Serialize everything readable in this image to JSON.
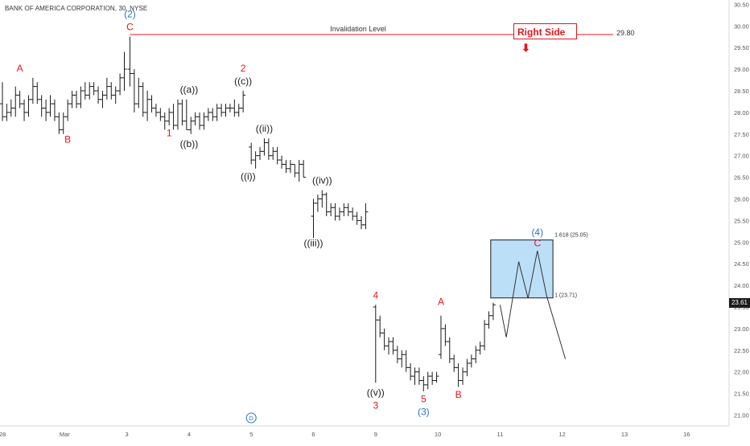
{
  "header": {
    "symbol_title": "BANK OF AMERICA CORPORATION, 30, NYSE"
  },
  "colors": {
    "bars": "#1b1b1b",
    "red": "#e8141c",
    "blue": "#2c72c7",
    "box_fill": "#bcdff8",
    "axis_text": "#555555"
  },
  "annotations": {
    "right_side": "Right Side",
    "right_side_arrow": "⬇",
    "invalidation_label": "Invalidation Level",
    "invalidation_value": "29.80",
    "fib_upper": "1.618 (25.05)",
    "fib_lower": "1 (23.71)",
    "current_price": "23.61"
  },
  "chart_data": {
    "type": "ohlc",
    "title": "",
    "x_ticks": [
      {
        "label": "28",
        "x": 0
      },
      {
        "label": "Mar",
        "x": 1
      },
      {
        "label": "3",
        "x": 2
      },
      {
        "label": "4",
        "x": 3
      },
      {
        "label": "5",
        "x": 4
      },
      {
        "label": "6",
        "x": 5
      },
      {
        "label": "9",
        "x": 6
      },
      {
        "label": "10",
        "x": 7
      },
      {
        "label": "11",
        "x": 8
      },
      {
        "label": "12",
        "x": 9
      },
      {
        "label": "13",
        "x": 10
      },
      {
        "label": "16",
        "x": 11
      }
    ],
    "y_ticks": [
      "21.00",
      "21.50",
      "22.00",
      "22.50",
      "23.00",
      "23.50",
      "24.00",
      "24.50",
      "25.00",
      "25.50",
      "26.00",
      "26.50",
      "27.00",
      "27.50",
      "28.00",
      "28.50",
      "29.00",
      "29.50",
      "30.00",
      "30.50"
    ],
    "ylim": [
      20.75,
      30.6
    ],
    "invalidation_level": 29.8,
    "target_zone": {
      "x_start": 7.85,
      "x_end": 8.85,
      "low": 23.71,
      "high": 25.05
    },
    "projection_path": [
      [
        8.0,
        23.55
      ],
      [
        8.1,
        22.8
      ],
      [
        8.3,
        24.55
      ],
      [
        8.45,
        23.7
      ],
      [
        8.6,
        24.8
      ],
      [
        8.75,
        23.75
      ],
      [
        9.05,
        22.3
      ]
    ],
    "ohlc": [
      [
        0.0,
        28.2,
        28.7,
        27.8,
        27.9
      ],
      [
        0.07,
        27.9,
        28.2,
        27.8,
        28.0
      ],
      [
        0.14,
        28.0,
        28.3,
        27.9,
        28.1
      ],
      [
        0.21,
        28.1,
        28.6,
        27.9,
        28.4
      ],
      [
        0.28,
        28.4,
        28.5,
        28.1,
        28.2
      ],
      [
        0.35,
        28.2,
        28.3,
        27.8,
        28.0
      ],
      [
        0.42,
        28.0,
        28.4,
        27.9,
        28.3
      ],
      [
        0.49,
        28.3,
        28.8,
        28.2,
        28.6
      ],
      [
        0.56,
        28.6,
        28.7,
        28.2,
        28.3
      ],
      [
        0.63,
        28.3,
        28.4,
        27.9,
        28.1
      ],
      [
        0.7,
        28.1,
        28.3,
        27.8,
        28.0
      ],
      [
        0.77,
        28.0,
        28.4,
        27.9,
        28.2
      ],
      [
        0.84,
        28.2,
        28.3,
        27.8,
        27.9
      ],
      [
        0.91,
        27.9,
        28.0,
        27.5,
        27.6
      ],
      [
        0.98,
        27.6,
        28.0,
        27.5,
        27.9
      ],
      [
        1.05,
        27.9,
        28.3,
        27.8,
        28.2
      ],
      [
        1.12,
        28.2,
        28.5,
        28.1,
        28.4
      ],
      [
        1.19,
        28.4,
        28.5,
        28.1,
        28.2
      ],
      [
        1.26,
        28.2,
        28.6,
        28.1,
        28.5
      ],
      [
        1.33,
        28.5,
        28.7,
        28.3,
        28.4
      ],
      [
        1.4,
        28.4,
        28.7,
        28.3,
        28.6
      ],
      [
        1.47,
        28.6,
        28.7,
        28.4,
        28.5
      ],
      [
        1.54,
        28.5,
        28.6,
        28.2,
        28.3
      ],
      [
        1.61,
        28.3,
        28.5,
        28.1,
        28.4
      ],
      [
        1.68,
        28.4,
        28.8,
        28.3,
        28.6
      ],
      [
        1.75,
        28.6,
        28.7,
        28.3,
        28.4
      ],
      [
        1.82,
        28.4,
        28.6,
        28.2,
        28.5
      ],
      [
        1.89,
        28.5,
        28.9,
        28.4,
        28.8
      ],
      [
        1.96,
        28.8,
        29.4,
        28.5,
        29.0
      ],
      [
        2.05,
        29.0,
        29.75,
        28.6,
        28.9
      ],
      [
        2.12,
        28.9,
        29.0,
        28.0,
        28.2
      ],
      [
        2.19,
        28.2,
        28.8,
        28.1,
        28.6
      ],
      [
        2.26,
        28.6,
        28.7,
        27.9,
        28.0
      ],
      [
        2.33,
        28.0,
        28.5,
        27.8,
        28.3
      ],
      [
        2.4,
        28.3,
        28.4,
        28.0,
        28.1
      ],
      [
        2.47,
        28.1,
        28.2,
        27.9,
        28.0
      ],
      [
        2.54,
        28.0,
        28.1,
        27.8,
        27.9
      ],
      [
        2.61,
        27.9,
        28.0,
        27.6,
        27.8
      ],
      [
        2.68,
        27.8,
        28.1,
        27.7,
        28.0
      ],
      [
        2.75,
        28.0,
        28.2,
        27.6,
        27.7
      ],
      [
        2.82,
        27.7,
        28.3,
        27.6,
        28.2
      ],
      [
        2.89,
        28.2,
        28.3,
        27.7,
        27.8
      ],
      [
        2.96,
        27.8,
        28.3,
        27.6,
        27.6
      ],
      [
        3.03,
        27.6,
        27.9,
        27.5,
        27.8
      ],
      [
        3.1,
        27.8,
        28.0,
        27.7,
        27.9
      ],
      [
        3.17,
        27.9,
        28.0,
        27.6,
        27.7
      ],
      [
        3.24,
        27.7,
        28.0,
        27.6,
        27.9
      ],
      [
        3.31,
        27.9,
        28.1,
        27.8,
        28.0
      ],
      [
        3.38,
        28.0,
        28.1,
        27.8,
        27.9
      ],
      [
        3.45,
        27.9,
        28.2,
        27.8,
        28.1
      ],
      [
        3.52,
        28.1,
        28.2,
        27.9,
        28.0
      ],
      [
        3.59,
        28.0,
        28.2,
        27.9,
        28.1
      ],
      [
        3.66,
        28.1,
        28.2,
        28.0,
        28.1
      ],
      [
        3.73,
        28.1,
        28.3,
        27.9,
        28.0
      ],
      [
        3.8,
        28.0,
        28.2,
        27.9,
        28.1
      ],
      [
        3.87,
        28.1,
        28.5,
        28.0,
        28.4
      ],
      [
        4.0,
        27.2,
        27.3,
        26.8,
        26.9
      ],
      [
        4.07,
        26.9,
        27.1,
        26.7,
        27.0
      ],
      [
        4.14,
        27.0,
        27.2,
        26.9,
        27.1
      ],
      [
        4.21,
        27.1,
        27.4,
        27.0,
        27.3
      ],
      [
        4.28,
        27.3,
        27.4,
        26.9,
        27.0
      ],
      [
        4.35,
        27.0,
        27.2,
        26.9,
        27.1
      ],
      [
        4.42,
        27.1,
        27.2,
        26.8,
        26.9
      ],
      [
        4.49,
        26.9,
        27.0,
        26.7,
        26.8
      ],
      [
        4.56,
        26.8,
        26.9,
        26.6,
        26.7
      ],
      [
        4.63,
        26.7,
        26.9,
        26.6,
        26.8
      ],
      [
        4.7,
        26.8,
        26.8,
        26.5,
        26.6
      ],
      [
        4.77,
        26.6,
        26.9,
        26.4,
        26.8
      ],
      [
        4.84,
        26.8,
        26.9,
        26.5,
        26.5
      ],
      [
        5.0,
        25.6,
        26.0,
        25.1,
        25.9
      ],
      [
        5.07,
        25.9,
        26.1,
        25.7,
        26.0
      ],
      [
        5.14,
        26.0,
        26.2,
        25.8,
        26.1
      ],
      [
        5.21,
        26.1,
        26.15,
        25.6,
        25.7
      ],
      [
        5.28,
        25.7,
        25.9,
        25.6,
        25.8
      ],
      [
        5.35,
        25.8,
        25.9,
        25.5,
        25.6
      ],
      [
        5.42,
        25.6,
        25.8,
        25.5,
        25.7
      ],
      [
        5.49,
        25.7,
        25.9,
        25.6,
        25.8
      ],
      [
        5.56,
        25.8,
        25.9,
        25.6,
        25.7
      ],
      [
        5.63,
        25.7,
        25.8,
        25.5,
        25.6
      ],
      [
        5.7,
        25.6,
        25.7,
        25.4,
        25.5
      ],
      [
        5.77,
        25.5,
        25.6,
        25.3,
        25.4
      ],
      [
        5.84,
        25.4,
        25.9,
        25.3,
        25.7
      ],
      [
        6.0,
        23.5,
        23.55,
        21.75,
        23.2
      ],
      [
        6.07,
        23.2,
        23.3,
        22.8,
        22.9
      ],
      [
        6.14,
        22.9,
        23.0,
        22.5,
        22.6
      ],
      [
        6.21,
        22.6,
        22.8,
        22.4,
        22.7
      ],
      [
        6.28,
        22.7,
        22.8,
        22.4,
        22.5
      ],
      [
        6.35,
        22.5,
        22.6,
        22.2,
        22.3
      ],
      [
        6.42,
        22.3,
        22.5,
        22.1,
        22.4
      ],
      [
        6.49,
        22.4,
        22.5,
        22.0,
        22.1
      ],
      [
        6.56,
        22.1,
        22.2,
        21.8,
        21.9
      ],
      [
        6.63,
        21.9,
        22.1,
        21.7,
        22.0
      ],
      [
        6.7,
        22.0,
        22.1,
        21.7,
        21.8
      ],
      [
        6.77,
        21.8,
        21.9,
        21.55,
        21.7
      ],
      [
        6.84,
        21.7,
        22.0,
        21.6,
        21.9
      ],
      [
        6.91,
        21.9,
        22.0,
        21.7,
        21.8
      ],
      [
        6.98,
        21.8,
        22.0,
        21.75,
        21.9
      ],
      [
        7.05,
        22.4,
        23.3,
        22.3,
        23.0
      ],
      [
        7.12,
        23.0,
        23.1,
        22.6,
        22.7
      ],
      [
        7.19,
        22.7,
        22.8,
        22.2,
        22.3
      ],
      [
        7.26,
        22.3,
        22.4,
        22.0,
        22.1
      ],
      [
        7.33,
        22.1,
        22.2,
        21.65,
        21.8
      ],
      [
        7.4,
        21.8,
        22.1,
        21.7,
        22.0
      ],
      [
        7.47,
        22.0,
        22.3,
        21.9,
        22.2
      ],
      [
        7.54,
        22.2,
        22.4,
        22.1,
        22.3
      ],
      [
        7.61,
        22.3,
        22.6,
        22.2,
        22.5
      ],
      [
        7.68,
        22.5,
        22.7,
        22.4,
        22.6
      ],
      [
        7.75,
        22.6,
        23.2,
        22.5,
        23.1
      ],
      [
        7.82,
        23.1,
        23.4,
        23.0,
        23.3
      ],
      [
        7.89,
        23.3,
        23.6,
        23.2,
        23.55
      ]
    ],
    "wave_labels": [
      {
        "text": "A",
        "x": 0.28,
        "y": 28.95,
        "color": "red"
      },
      {
        "text": "B",
        "x": 1.05,
        "y": 27.3,
        "color": "red"
      },
      {
        "text": "(2)",
        "x": 2.05,
        "y": 30.2,
        "color": "blue"
      },
      {
        "text": "C",
        "x": 2.05,
        "y": 29.9,
        "color": "red"
      },
      {
        "text": "1",
        "x": 2.68,
        "y": 27.45,
        "color": "red"
      },
      {
        "text": "((a))",
        "x": 3.0,
        "y": 28.45,
        "color": "dark"
      },
      {
        "text": "((b))",
        "x": 3.0,
        "y": 27.2,
        "color": "dark"
      },
      {
        "text": "2",
        "x": 3.87,
        "y": 28.95,
        "color": "red"
      },
      {
        "text": "((c))",
        "x": 3.87,
        "y": 28.65,
        "color": "dark"
      },
      {
        "text": "((i))",
        "x": 3.95,
        "y": 26.45,
        "color": "dark"
      },
      {
        "text": "((ii))",
        "x": 4.21,
        "y": 27.55,
        "color": "dark"
      },
      {
        "text": "((iv))",
        "x": 5.14,
        "y": 26.35,
        "color": "dark"
      },
      {
        "text": "((iii))",
        "x": 5.0,
        "y": 24.9,
        "color": "dark"
      },
      {
        "text": "4",
        "x": 6.0,
        "y": 23.7,
        "color": "red"
      },
      {
        "text": "((v))",
        "x": 6.0,
        "y": 21.45,
        "color": "dark"
      },
      {
        "text": "3",
        "x": 6.0,
        "y": 21.15,
        "color": "red"
      },
      {
        "text": "5",
        "x": 6.77,
        "y": 21.3,
        "color": "red"
      },
      {
        "text": "(3)",
        "x": 6.77,
        "y": 21.0,
        "color": "blue"
      },
      {
        "text": "A",
        "x": 7.05,
        "y": 23.55,
        "color": "red"
      },
      {
        "text": "B",
        "x": 7.33,
        "y": 21.4,
        "color": "red"
      },
      {
        "text": "(4)",
        "x": 8.6,
        "y": 25.15,
        "color": "blue"
      },
      {
        "text": "C",
        "x": 8.6,
        "y": 24.9,
        "color": "red"
      }
    ],
    "cycle_marker": {
      "text": "D",
      "x": 4.0
    }
  }
}
